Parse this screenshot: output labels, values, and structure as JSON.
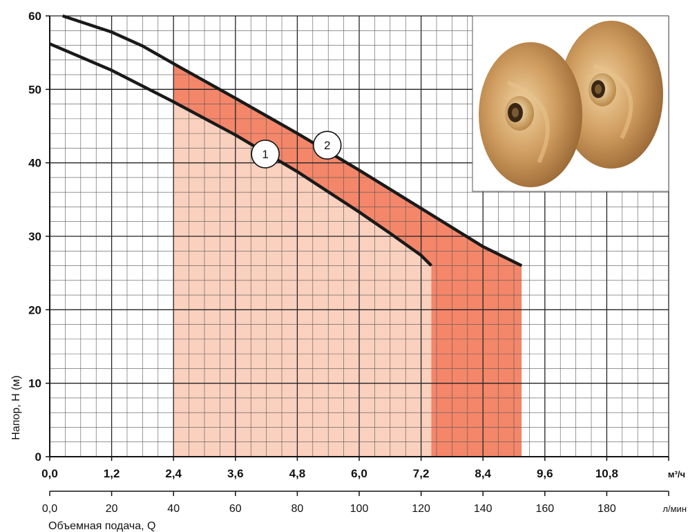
{
  "chart_data": {
    "type": "line",
    "ylabel": "Напор, H (м)",
    "xlabel": "Объемная подача, Q",
    "x_unit_primary": "м³/ч",
    "x_unit_secondary": "л/мин",
    "xlim": [
      0,
      12
    ],
    "ylim": [
      0,
      60
    ],
    "grid": true,
    "y_ticks": [
      "0",
      "10",
      "20",
      "30",
      "40",
      "50",
      "60"
    ],
    "y_tick_values": [
      0,
      10,
      20,
      30,
      40,
      50,
      60
    ],
    "x_ticks_m3h": [
      "0,0",
      "1,2",
      "2,4",
      "3,6",
      "4,8",
      "6,0",
      "7,2",
      "8,4",
      "9,6",
      "10,8"
    ],
    "x_tick_values_m3h": [
      0,
      1.2,
      2.4,
      3.6,
      4.8,
      6.0,
      7.2,
      8.4,
      9.6,
      10.8
    ],
    "x_ticks_lmin": [
      "0,0",
      "20",
      "40",
      "60",
      "80",
      "100",
      "120",
      "140",
      "160",
      "180"
    ],
    "x_tick_values_lmin": [
      0,
      20,
      40,
      60,
      80,
      100,
      120,
      140,
      160,
      180
    ],
    "series": [
      {
        "name": "1",
        "color": "#1a1a1a",
        "x": [
          0.0,
          1.2,
          2.4,
          3.6,
          4.8,
          6.0,
          6.6,
          7.2,
          7.4
        ],
        "y": [
          56.2,
          52.6,
          48.3,
          43.8,
          38.8,
          33.3,
          30.4,
          27.4,
          26.0
        ]
      },
      {
        "name": "2",
        "color": "#1a1a1a",
        "x": [
          0.25,
          1.2,
          1.8,
          2.4,
          3.6,
          4.8,
          6.0,
          7.2,
          8.4,
          9.15
        ],
        "y": [
          60.0,
          57.8,
          55.9,
          53.5,
          48.8,
          44.0,
          39.0,
          33.8,
          28.6,
          26.0
        ]
      }
    ],
    "operating_range": {
      "curve_1": {
        "x_min": 2.4,
        "x_max": 7.4,
        "fill": "#fad0be"
      },
      "curve_2": {
        "x_min": 2.4,
        "x_max": 9.15,
        "fill": "#f4866a"
      }
    }
  }
}
